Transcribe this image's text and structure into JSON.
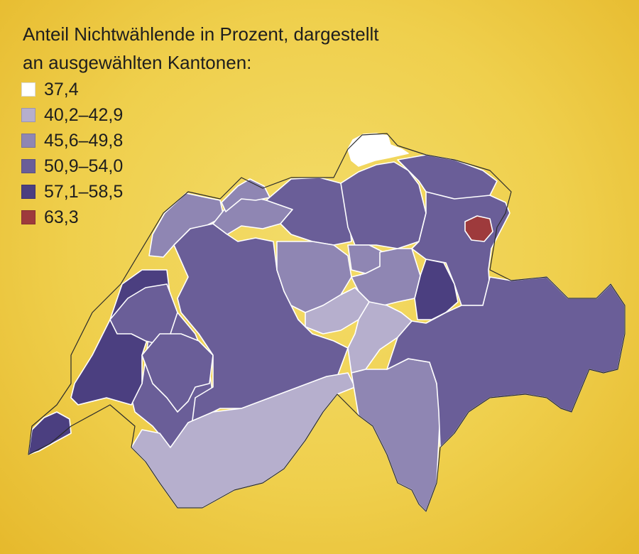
{
  "title_line1": "Anteil Nichtwählende in Prozent, dargestellt",
  "title_line2": "an ausgewählten Kantonen:",
  "legend": [
    {
      "label": "37,4",
      "color": "#ffffff"
    },
    {
      "label": "40,2–42,9",
      "color": "#b6afcd"
    },
    {
      "label": "45,6–49,8",
      "color": "#8f86b3"
    },
    {
      "label": "50,9–54,0",
      "color": "#6a5e98"
    },
    {
      "label": "57,1–58,5",
      "color": "#4b3f80"
    },
    {
      "label": "63,3",
      "color": "#9e3a3c"
    }
  ],
  "regions": [
    {
      "name": "schaffhausen",
      "cls": 0
    },
    {
      "name": "geneva",
      "cls": 4
    },
    {
      "name": "vaud",
      "cls": 3
    },
    {
      "name": "vaud-west",
      "cls": 4
    },
    {
      "name": "neuchatel",
      "cls": 3
    },
    {
      "name": "jura",
      "cls": 2
    },
    {
      "name": "fribourg",
      "cls": 3
    },
    {
      "name": "bern",
      "cls": 3
    },
    {
      "name": "valais",
      "cls": 1
    },
    {
      "name": "solothurn",
      "cls": 2
    },
    {
      "name": "basel",
      "cls": 2
    },
    {
      "name": "aargau",
      "cls": 3
    },
    {
      "name": "zurich",
      "cls": 3
    },
    {
      "name": "thurgau",
      "cls": 3
    },
    {
      "name": "st-gallen",
      "cls": 3
    },
    {
      "name": "appenzell-innerrhoden",
      "cls": 5
    },
    {
      "name": "glarus",
      "cls": 4
    },
    {
      "name": "lucerne",
      "cls": 2
    },
    {
      "name": "zug",
      "cls": 2
    },
    {
      "name": "schwyz",
      "cls": 2
    },
    {
      "name": "central-small-cantons",
      "cls": 1
    },
    {
      "name": "uri",
      "cls": 1
    },
    {
      "name": "ticino",
      "cls": 2
    },
    {
      "name": "graubuenden",
      "cls": 3
    }
  ]
}
